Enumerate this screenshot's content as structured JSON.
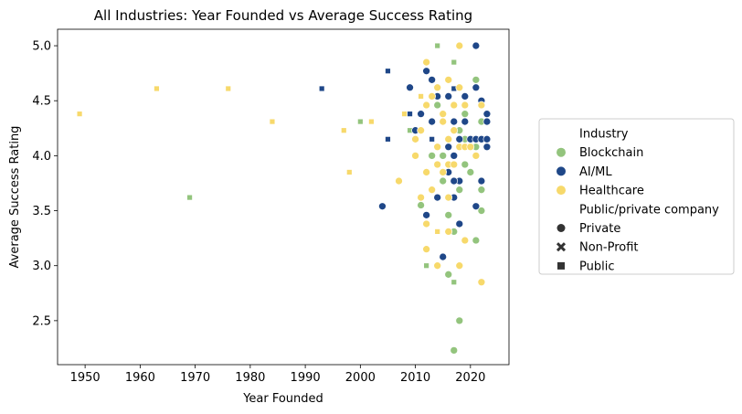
{
  "chart_data": {
    "type": "scatter",
    "title": "All Industries: Year Founded vs Average Success Rating",
    "xlabel": "Year Founded",
    "ylabel": "Average Success Rating",
    "xlim": [
      1945,
      2027
    ],
    "ylim": [
      2.1,
      5.15
    ],
    "xticks": [
      1950,
      1960,
      1970,
      1980,
      1990,
      2000,
      2010,
      2020
    ],
    "yticks": [
      2.5,
      3.0,
      3.5,
      4.0,
      4.5,
      5.0
    ],
    "grid": false,
    "legend": {
      "placement": "right",
      "hue_title": "Industry",
      "style_title": "Public/private company",
      "hue_entries": [
        {
          "label": "Blockchain",
          "color": "#93c47d"
        },
        {
          "label": "AI/ML",
          "color": "#1f4788"
        },
        {
          "label": "Healthcare",
          "color": "#f7d96b"
        }
      ],
      "style_entries": [
        {
          "label": "Private",
          "marker": "circle"
        },
        {
          "label": "Non-Profit",
          "marker": "x"
        },
        {
          "label": "Public",
          "marker": "square"
        }
      ]
    },
    "series": [
      {
        "name": "Blockchain",
        "color": "#93c47d",
        "points": [
          {
            "x": 1969,
            "y": 3.62,
            "m": "square"
          },
          {
            "x": 2000,
            "y": 4.31,
            "m": "square"
          },
          {
            "x": 2009,
            "y": 4.23,
            "m": "square"
          },
          {
            "x": 2012,
            "y": 3.0,
            "m": "square"
          },
          {
            "x": 2014,
            "y": 5.0,
            "m": "square"
          },
          {
            "x": 2017,
            "y": 4.85,
            "m": "square"
          },
          {
            "x": 2017,
            "y": 2.85,
            "m": "square"
          },
          {
            "x": 2011,
            "y": 3.55,
            "m": "circle"
          },
          {
            "x": 2013,
            "y": 4.0,
            "m": "circle"
          },
          {
            "x": 2014,
            "y": 4.46,
            "m": "circle"
          },
          {
            "x": 2015,
            "y": 3.77,
            "m": "circle"
          },
          {
            "x": 2016,
            "y": 3.46,
            "m": "circle"
          },
          {
            "x": 2016,
            "y": 2.92,
            "m": "circle"
          },
          {
            "x": 2017,
            "y": 3.31,
            "m": "circle"
          },
          {
            "x": 2017,
            "y": 2.23,
            "m": "circle"
          },
          {
            "x": 2018,
            "y": 2.5,
            "m": "circle"
          },
          {
            "x": 2018,
            "y": 3.69,
            "m": "circle"
          },
          {
            "x": 2019,
            "y": 4.38,
            "m": "circle"
          },
          {
            "x": 2019,
            "y": 4.15,
            "m": "circle"
          },
          {
            "x": 2020,
            "y": 3.85,
            "m": "circle"
          },
          {
            "x": 2021,
            "y": 4.08,
            "m": "circle"
          },
          {
            "x": 2021,
            "y": 4.69,
            "m": "circle"
          },
          {
            "x": 2021,
            "y": 3.23,
            "m": "circle"
          },
          {
            "x": 2022,
            "y": 3.5,
            "m": "circle"
          },
          {
            "x": 2022,
            "y": 4.31,
            "m": "circle"
          },
          {
            "x": 2015,
            "y": 4.0,
            "m": "circle"
          },
          {
            "x": 2018,
            "y": 4.23,
            "m": "circle"
          },
          {
            "x": 2019,
            "y": 3.92,
            "m": "circle"
          },
          {
            "x": 2022,
            "y": 3.69,
            "m": "circle"
          }
        ]
      },
      {
        "name": "AI/ML",
        "color": "#1f4788",
        "points": [
          {
            "x": 1993,
            "y": 4.61,
            "m": "square"
          },
          {
            "x": 2005,
            "y": 4.77,
            "m": "square"
          },
          {
            "x": 2005,
            "y": 4.15,
            "m": "square"
          },
          {
            "x": 2009,
            "y": 4.38,
            "m": "square"
          },
          {
            "x": 2013,
            "y": 4.15,
            "m": "square"
          },
          {
            "x": 2017,
            "y": 4.61,
            "m": "square"
          },
          {
            "x": 2004,
            "y": 3.54,
            "m": "circle"
          },
          {
            "x": 2009,
            "y": 4.62,
            "m": "circle"
          },
          {
            "x": 2010,
            "y": 4.23,
            "m": "circle"
          },
          {
            "x": 2011,
            "y": 4.38,
            "m": "circle"
          },
          {
            "x": 2012,
            "y": 4.77,
            "m": "circle"
          },
          {
            "x": 2012,
            "y": 3.46,
            "m": "circle"
          },
          {
            "x": 2013,
            "y": 4.69,
            "m": "circle"
          },
          {
            "x": 2013,
            "y": 4.31,
            "m": "circle"
          },
          {
            "x": 2014,
            "y": 4.54,
            "m": "circle"
          },
          {
            "x": 2014,
            "y": 3.62,
            "m": "circle"
          },
          {
            "x": 2015,
            "y": 3.08,
            "m": "circle"
          },
          {
            "x": 2016,
            "y": 4.54,
            "m": "circle"
          },
          {
            "x": 2016,
            "y": 3.85,
            "m": "circle"
          },
          {
            "x": 2017,
            "y": 4.31,
            "m": "circle"
          },
          {
            "x": 2017,
            "y": 4.0,
            "m": "circle"
          },
          {
            "x": 2017,
            "y": 3.62,
            "m": "circle"
          },
          {
            "x": 2018,
            "y": 4.15,
            "m": "circle"
          },
          {
            "x": 2018,
            "y": 3.38,
            "m": "circle"
          },
          {
            "x": 2018,
            "y": 3.77,
            "m": "circle"
          },
          {
            "x": 2019,
            "y": 4.54,
            "m": "circle"
          },
          {
            "x": 2019,
            "y": 4.31,
            "m": "circle"
          },
          {
            "x": 2020,
            "y": 4.15,
            "m": "circle"
          },
          {
            "x": 2021,
            "y": 5.0,
            "m": "circle"
          },
          {
            "x": 2021,
            "y": 4.62,
            "m": "circle"
          },
          {
            "x": 2021,
            "y": 4.15,
            "m": "circle"
          },
          {
            "x": 2021,
            "y": 3.54,
            "m": "circle"
          },
          {
            "x": 2022,
            "y": 4.5,
            "m": "circle"
          },
          {
            "x": 2022,
            "y": 4.15,
            "m": "circle"
          },
          {
            "x": 2022,
            "y": 3.77,
            "m": "circle"
          },
          {
            "x": 2023,
            "y": 4.38,
            "m": "circle"
          },
          {
            "x": 2023,
            "y": 4.31,
            "m": "circle"
          },
          {
            "x": 2023,
            "y": 4.15,
            "m": "circle"
          },
          {
            "x": 2023,
            "y": 4.08,
            "m": "circle"
          },
          {
            "x": 2016,
            "y": 4.08,
            "m": "circle"
          },
          {
            "x": 2017,
            "y": 3.77,
            "m": "circle"
          }
        ]
      },
      {
        "name": "Healthcare",
        "color": "#f7d96b",
        "points": [
          {
            "x": 1949,
            "y": 4.38,
            "m": "square"
          },
          {
            "x": 1963,
            "y": 4.61,
            "m": "square"
          },
          {
            "x": 1976,
            "y": 4.61,
            "m": "square"
          },
          {
            "x": 1984,
            "y": 4.31,
            "m": "square"
          },
          {
            "x": 1997,
            "y": 4.23,
            "m": "square"
          },
          {
            "x": 1998,
            "y": 3.85,
            "m": "square"
          },
          {
            "x": 2002,
            "y": 4.31,
            "m": "square"
          },
          {
            "x": 2008,
            "y": 4.38,
            "m": "square"
          },
          {
            "x": 2011,
            "y": 4.54,
            "m": "square"
          },
          {
            "x": 2014,
            "y": 3.31,
            "m": "square"
          },
          {
            "x": 2007,
            "y": 3.77,
            "m": "circle"
          },
          {
            "x": 2010,
            "y": 4.0,
            "m": "circle"
          },
          {
            "x": 2010,
            "y": 4.15,
            "m": "circle"
          },
          {
            "x": 2011,
            "y": 3.62,
            "m": "circle"
          },
          {
            "x": 2011,
            "y": 4.23,
            "m": "circle"
          },
          {
            "x": 2012,
            "y": 4.85,
            "m": "circle"
          },
          {
            "x": 2012,
            "y": 4.46,
            "m": "circle"
          },
          {
            "x": 2012,
            "y": 3.85,
            "m": "circle"
          },
          {
            "x": 2012,
            "y": 3.38,
            "m": "circle"
          },
          {
            "x": 2012,
            "y": 3.15,
            "m": "circle"
          },
          {
            "x": 2013,
            "y": 4.54,
            "m": "circle"
          },
          {
            "x": 2013,
            "y": 3.69,
            "m": "circle"
          },
          {
            "x": 2014,
            "y": 4.62,
            "m": "circle"
          },
          {
            "x": 2014,
            "y": 4.08,
            "m": "circle"
          },
          {
            "x": 2014,
            "y": 3.92,
            "m": "circle"
          },
          {
            "x": 2014,
            "y": 3.0,
            "m": "circle"
          },
          {
            "x": 2015,
            "y": 4.38,
            "m": "circle"
          },
          {
            "x": 2015,
            "y": 3.85,
            "m": "circle"
          },
          {
            "x": 2016,
            "y": 4.69,
            "m": "circle"
          },
          {
            "x": 2016,
            "y": 4.15,
            "m": "circle"
          },
          {
            "x": 2016,
            "y": 3.92,
            "m": "circle"
          },
          {
            "x": 2016,
            "y": 3.62,
            "m": "circle"
          },
          {
            "x": 2017,
            "y": 4.46,
            "m": "circle"
          },
          {
            "x": 2017,
            "y": 4.23,
            "m": "circle"
          },
          {
            "x": 2017,
            "y": 3.92,
            "m": "circle"
          },
          {
            "x": 2018,
            "y": 5.0,
            "m": "circle"
          },
          {
            "x": 2018,
            "y": 4.62,
            "m": "circle"
          },
          {
            "x": 2018,
            "y": 4.08,
            "m": "circle"
          },
          {
            "x": 2018,
            "y": 3.0,
            "m": "circle"
          },
          {
            "x": 2019,
            "y": 4.46,
            "m": "circle"
          },
          {
            "x": 2019,
            "y": 4.08,
            "m": "circle"
          },
          {
            "x": 2019,
            "y": 3.23,
            "m": "circle"
          },
          {
            "x": 2020,
            "y": 4.08,
            "m": "circle"
          },
          {
            "x": 2021,
            "y": 4.0,
            "m": "circle"
          },
          {
            "x": 2022,
            "y": 4.46,
            "m": "circle"
          },
          {
            "x": 2022,
            "y": 2.85,
            "m": "circle"
          },
          {
            "x": 2015,
            "y": 4.31,
            "m": "circle"
          },
          {
            "x": 2016,
            "y": 3.31,
            "m": "circle"
          }
        ]
      }
    ]
  }
}
